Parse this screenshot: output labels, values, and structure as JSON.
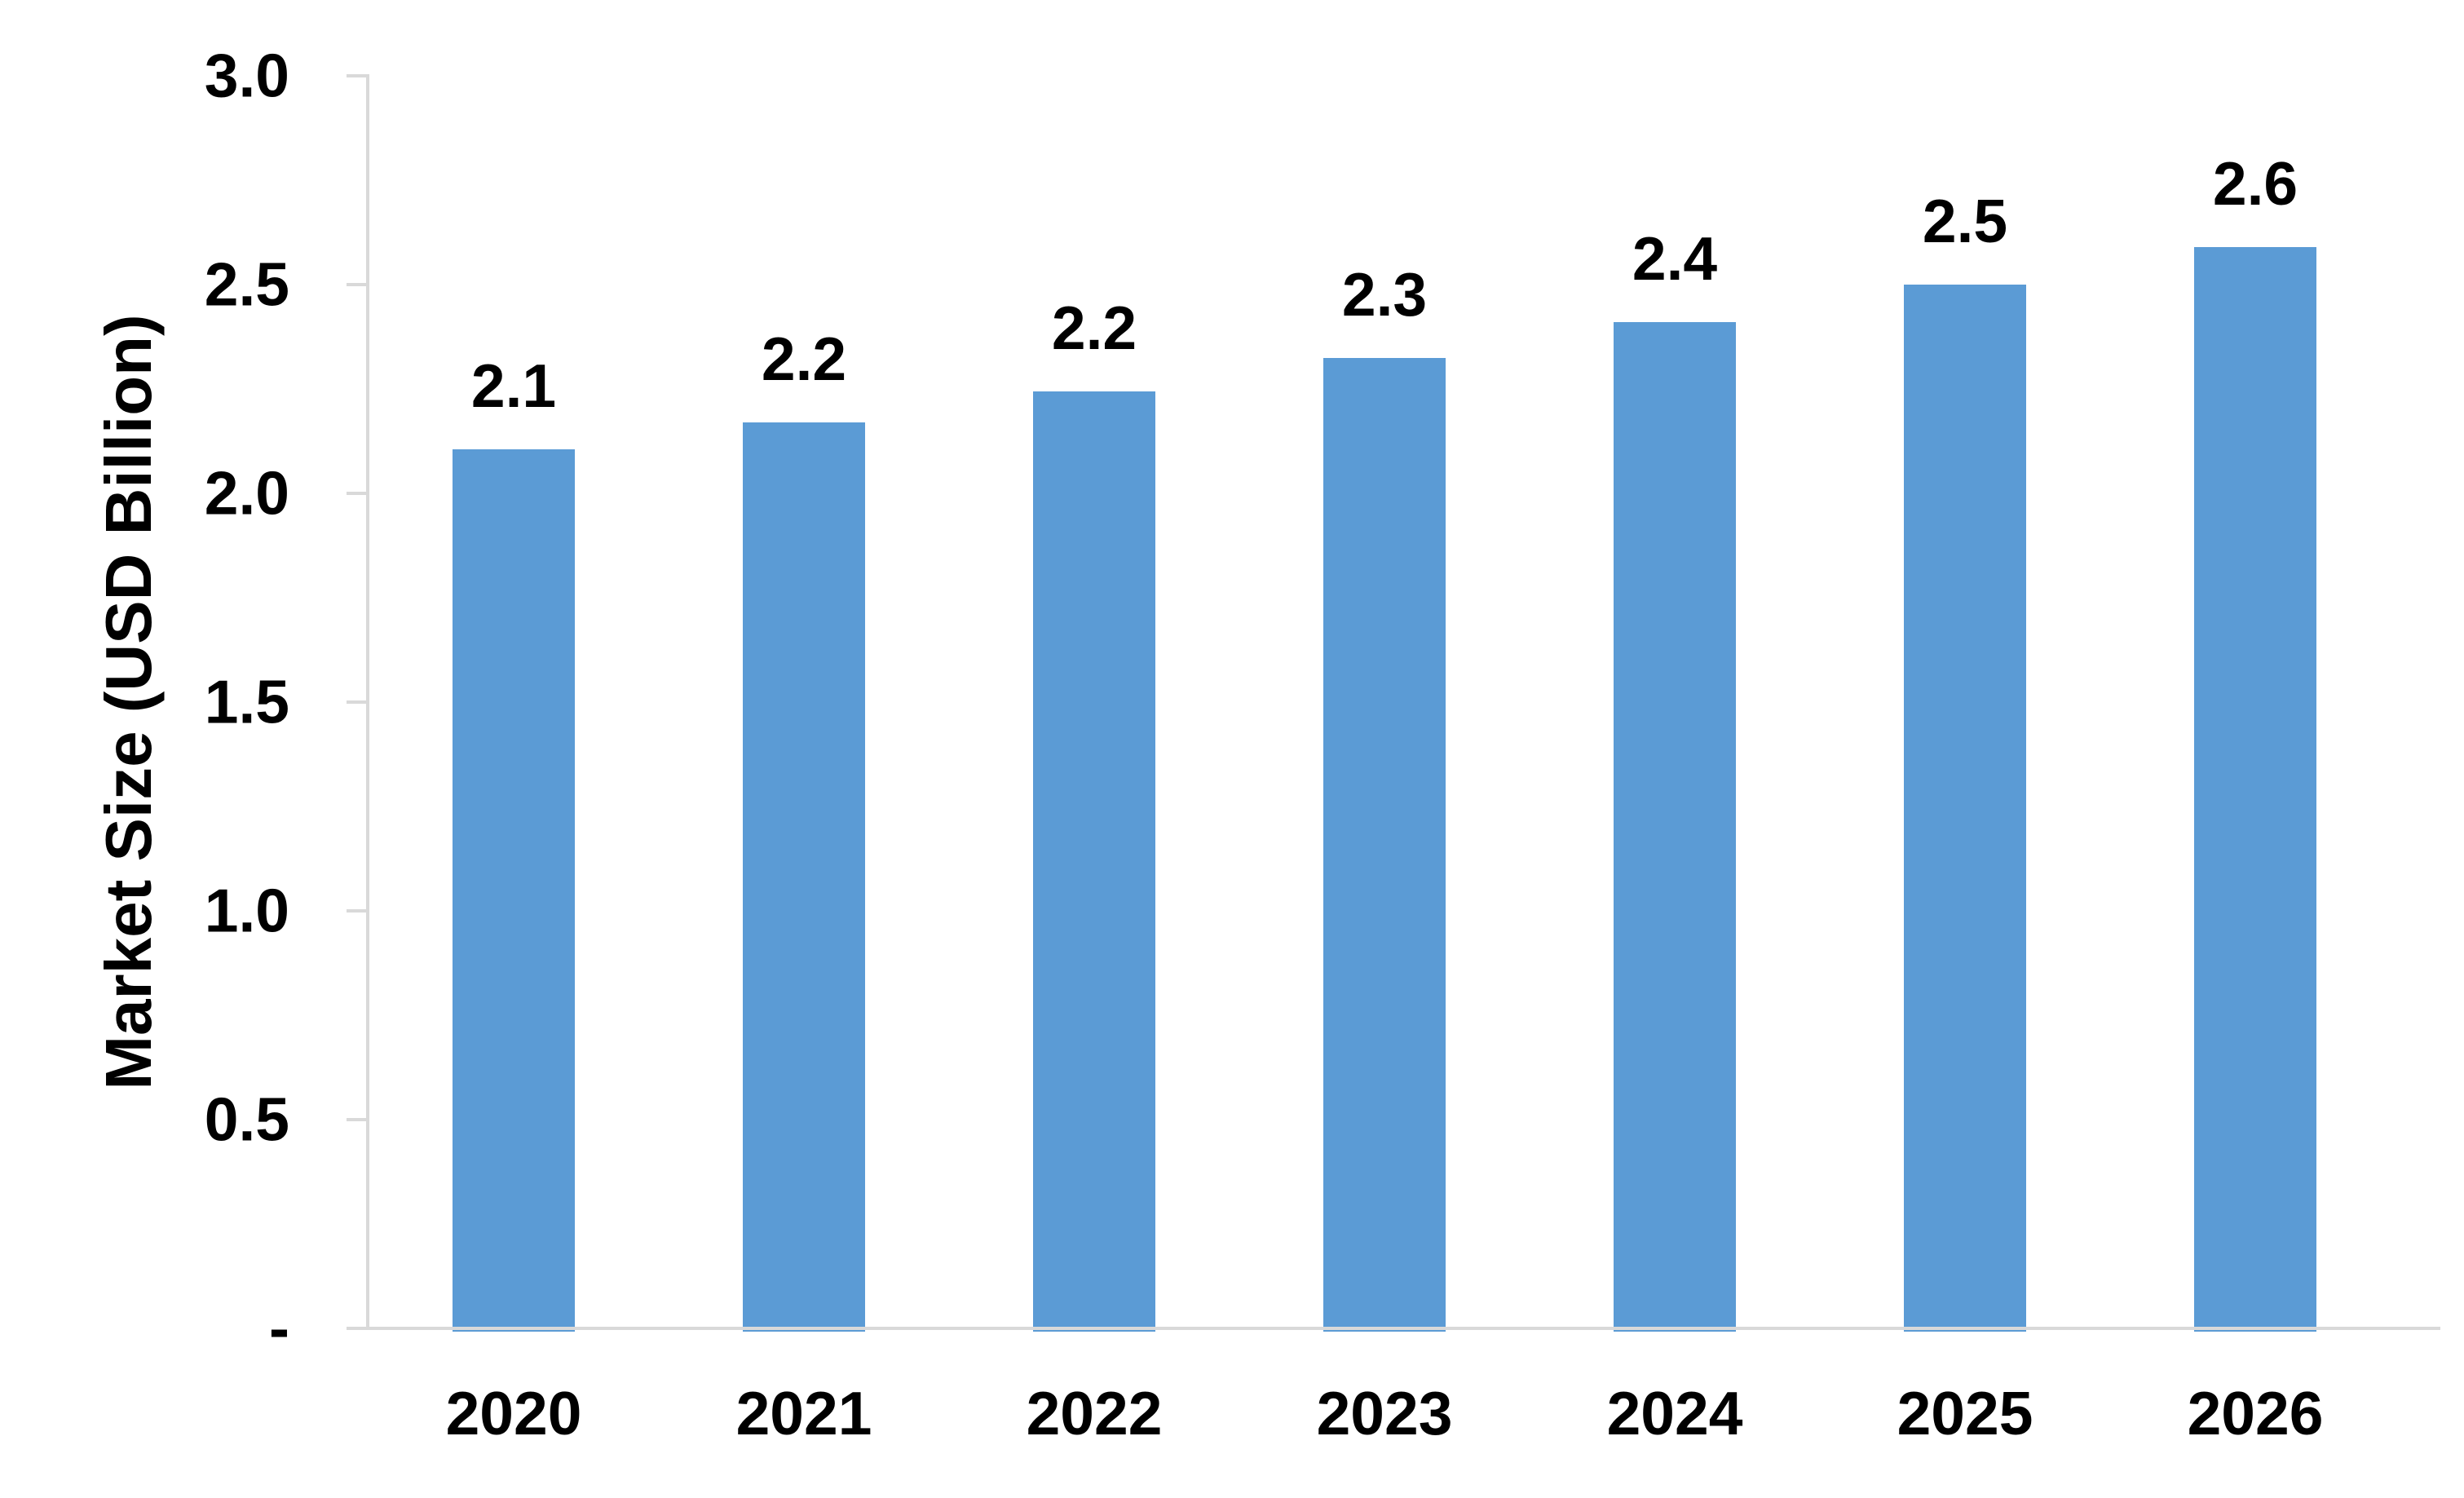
{
  "chart_data": {
    "type": "bar",
    "title": "",
    "categories": [
      "2020",
      "2021",
      "2022",
      "2023",
      "2024",
      "2025",
      "2026"
    ],
    "values": [
      2.1,
      2.2,
      2.2,
      2.3,
      2.4,
      2.5,
      2.6
    ],
    "value_labels": [
      "2.1",
      "2.2",
      "2.2",
      "2.3",
      "2.4",
      "2.5",
      "2.6"
    ],
    "bar_heights_precise": [
      2.105,
      2.17,
      2.245,
      2.325,
      2.41,
      2.5,
      2.59
    ],
    "xlabel": "",
    "ylabel": "Market Size (USD Billion)",
    "ylim": [
      0,
      3.0
    ],
    "ytick_interval": 0.5,
    "yticks": [
      {
        "label": "3.0",
        "value": 3.0
      },
      {
        "label": "2.5",
        "value": 2.5
      },
      {
        "label": "2.0",
        "value": 2.0
      },
      {
        "label": "1.5",
        "value": 1.5
      },
      {
        "label": "1.0",
        "value": 1.0
      },
      {
        "label": "0.5",
        "value": 0.5
      },
      {
        "label": "-",
        "value": 0.0
      }
    ],
    "grid": false,
    "legend": null,
    "colors": {
      "bar": "#5B9BD5",
      "axis": "#D9D9D9",
      "text": "#000000",
      "background": "#FFFFFF"
    }
  }
}
